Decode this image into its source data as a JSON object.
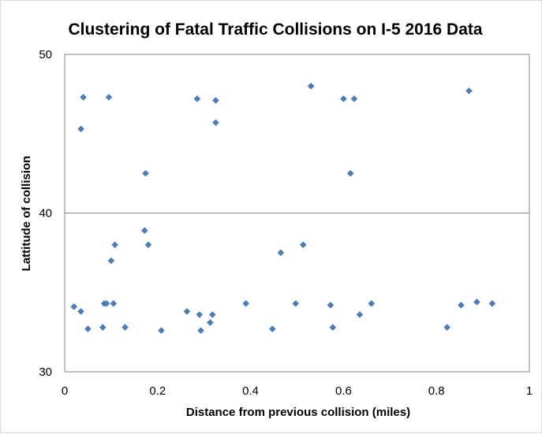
{
  "chart_data": {
    "type": "scatter",
    "title": "Clustering of Fatal Traffic Collisions on I-5 2016 Data",
    "xlabel": "Distance from previous collision (miles)",
    "ylabel": "Lattitude of collision",
    "xlim": [
      0,
      1
    ],
    "ylim": [
      30,
      50
    ],
    "xticks": [
      "0",
      "0.2",
      "0.4",
      "0.6",
      "0.8",
      "1"
    ],
    "yticks": [
      "30",
      "40",
      "50"
    ],
    "grid": "horizontal major gridlines",
    "legend": "none",
    "marker_color": "#4a7ebb",
    "marker_shape": "diamond",
    "series": [
      {
        "points": [
          {
            "x": 0.02,
            "y": 34.1
          },
          {
            "x": 0.035,
            "y": 33.8
          },
          {
            "x": 0.035,
            "y": 45.3
          },
          {
            "x": 0.04,
            "y": 47.3
          },
          {
            "x": 0.05,
            "y": 32.7
          },
          {
            "x": 0.082,
            "y": 32.8
          },
          {
            "x": 0.085,
            "y": 34.3
          },
          {
            "x": 0.09,
            "y": 34.3
          },
          {
            "x": 0.095,
            "y": 47.3
          },
          {
            "x": 0.1,
            "y": 37.0
          },
          {
            "x": 0.105,
            "y": 34.3
          },
          {
            "x": 0.108,
            "y": 38.0
          },
          {
            "x": 0.13,
            "y": 32.8
          },
          {
            "x": 0.172,
            "y": 38.9
          },
          {
            "x": 0.174,
            "y": 42.5
          },
          {
            "x": 0.18,
            "y": 38.0
          },
          {
            "x": 0.208,
            "y": 32.6
          },
          {
            "x": 0.263,
            "y": 33.8
          },
          {
            "x": 0.285,
            "y": 47.2
          },
          {
            "x": 0.29,
            "y": 33.6
          },
          {
            "x": 0.293,
            "y": 32.6
          },
          {
            "x": 0.313,
            "y": 33.1
          },
          {
            "x": 0.318,
            "y": 33.6
          },
          {
            "x": 0.325,
            "y": 47.1
          },
          {
            "x": 0.325,
            "y": 45.7
          },
          {
            "x": 0.39,
            "y": 34.3
          },
          {
            "x": 0.447,
            "y": 32.7
          },
          {
            "x": 0.465,
            "y": 37.5
          },
          {
            "x": 0.497,
            "y": 34.3
          },
          {
            "x": 0.513,
            "y": 38.0
          },
          {
            "x": 0.53,
            "y": 48.0
          },
          {
            "x": 0.572,
            "y": 34.2
          },
          {
            "x": 0.577,
            "y": 32.8
          },
          {
            "x": 0.6,
            "y": 47.2
          },
          {
            "x": 0.615,
            "y": 42.5
          },
          {
            "x": 0.623,
            "y": 47.2
          },
          {
            "x": 0.635,
            "y": 33.6
          },
          {
            "x": 0.66,
            "y": 34.3
          },
          {
            "x": 0.823,
            "y": 32.8
          },
          {
            "x": 0.853,
            "y": 34.2
          },
          {
            "x": 0.87,
            "y": 47.7
          },
          {
            "x": 0.887,
            "y": 34.4
          },
          {
            "x": 0.92,
            "y": 34.3
          }
        ]
      }
    ]
  }
}
